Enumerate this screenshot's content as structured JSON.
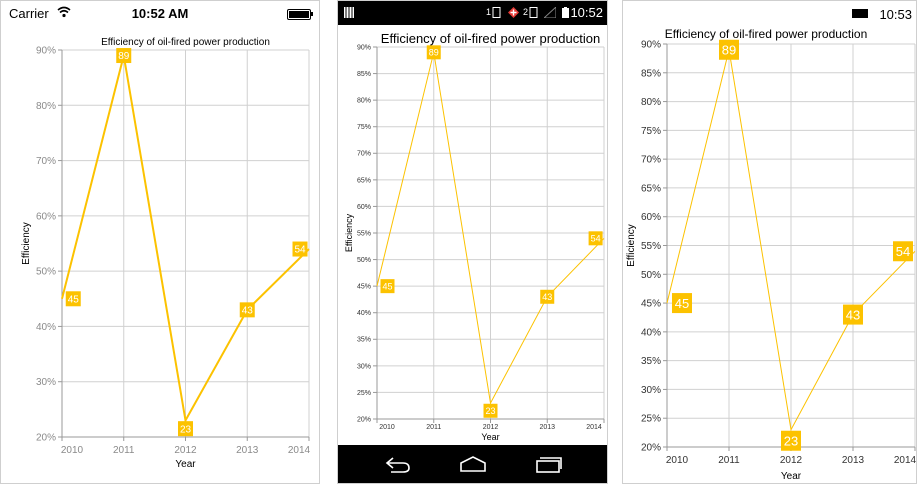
{
  "panels": {
    "ios": {
      "carrier": "Carrier",
      "time": "10:52 AM"
    },
    "android": {
      "time": "10:52",
      "badge_1": "1",
      "badge_2": "2"
    },
    "windows": {
      "time": "10:53"
    }
  },
  "line_color": "#FCC200",
  "label_text_color": "#ffffff",
  "chart_data": [
    {
      "type": "line",
      "title": "Efficiency of oil-fired power production",
      "xlabel": "Year",
      "ylabel": "Efficiency",
      "categories": [
        "2010",
        "2011",
        "2012",
        "2013",
        "2014"
      ],
      "values": [
        45,
        89,
        23,
        43,
        54
      ],
      "data_labels": [
        "45",
        "89",
        "23",
        "43",
        "54"
      ],
      "ylim": [
        20,
        90
      ],
      "yticks": [
        "20%",
        "30%",
        "40%",
        "50%",
        "60%",
        "70%",
        "80%",
        "90%"
      ],
      "grid": true
    },
    {
      "type": "line",
      "title": "Efficiency of oil-fired power production",
      "xlabel": "Year",
      "ylabel": "Efficiency",
      "categories": [
        "2010",
        "2011",
        "2012",
        "2013",
        "2014"
      ],
      "values": [
        45,
        89,
        23,
        43,
        54
      ],
      "data_labels": [
        "45",
        "89",
        "23",
        "43",
        "54"
      ],
      "ylim": [
        20,
        90
      ],
      "yticks": [
        "20%",
        "25%",
        "30%",
        "35%",
        "40%",
        "45%",
        "50%",
        "55%",
        "60%",
        "65%",
        "70%",
        "75%",
        "80%",
        "85%",
        "90%"
      ],
      "grid": true
    },
    {
      "type": "line",
      "title": "Efficiency of oil-fired power production",
      "xlabel": "Year",
      "ylabel": "Efficiency",
      "categories": [
        "2010",
        "2011",
        "2012",
        "2013",
        "2014"
      ],
      "values": [
        45,
        89,
        23,
        43,
        54
      ],
      "data_labels": [
        "45",
        "89",
        "23",
        "43",
        "54"
      ],
      "ylim": [
        20,
        90
      ],
      "yticks": [
        "20%",
        "25%",
        "30%",
        "35%",
        "40%",
        "45%",
        "50%",
        "55%",
        "60%",
        "65%",
        "70%",
        "75%",
        "80%",
        "85%",
        "90%"
      ],
      "grid": true
    }
  ]
}
